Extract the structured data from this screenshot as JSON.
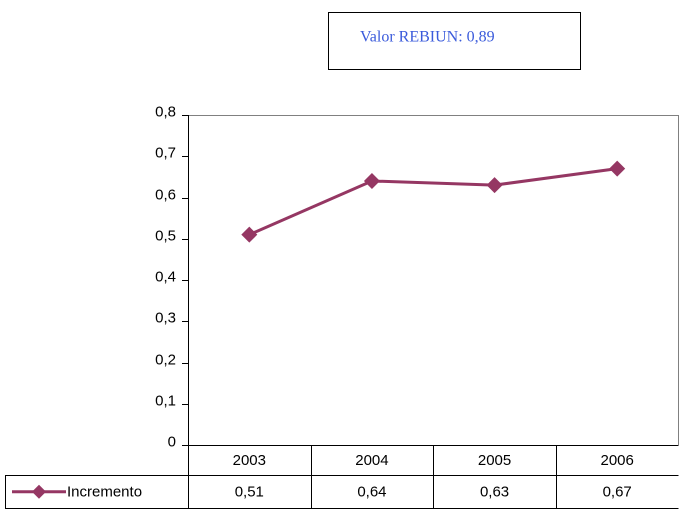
{
  "chart_data": {
    "type": "line",
    "annotation": "Valor REBIUN: 0,89",
    "categories": [
      "2003",
      "2004",
      "2005",
      "2006"
    ],
    "series": [
      {
        "name": "Incremento",
        "color": "#953763",
        "values": [
          0.51,
          0.64,
          0.63,
          0.67
        ],
        "value_labels": [
          "0,51",
          "0,64",
          "0,63",
          "0,67"
        ]
      }
    ],
    "ylim": [
      0,
      0.8
    ],
    "yticks": [
      0,
      {
        "value": 0.1,
        "label": "0,1"
      },
      {
        "value": 0.2,
        "label": "0,2"
      },
      {
        "value": 0.3,
        "label": "0,3"
      },
      {
        "value": 0.4,
        "label": "0,4"
      },
      {
        "value": 0.5,
        "label": "0,5"
      },
      {
        "value": 0.6,
        "label": "0,6"
      },
      {
        "value": 0.7,
        "label": "0,7"
      },
      {
        "value": 0.8,
        "label": "0,8"
      }
    ]
  }
}
